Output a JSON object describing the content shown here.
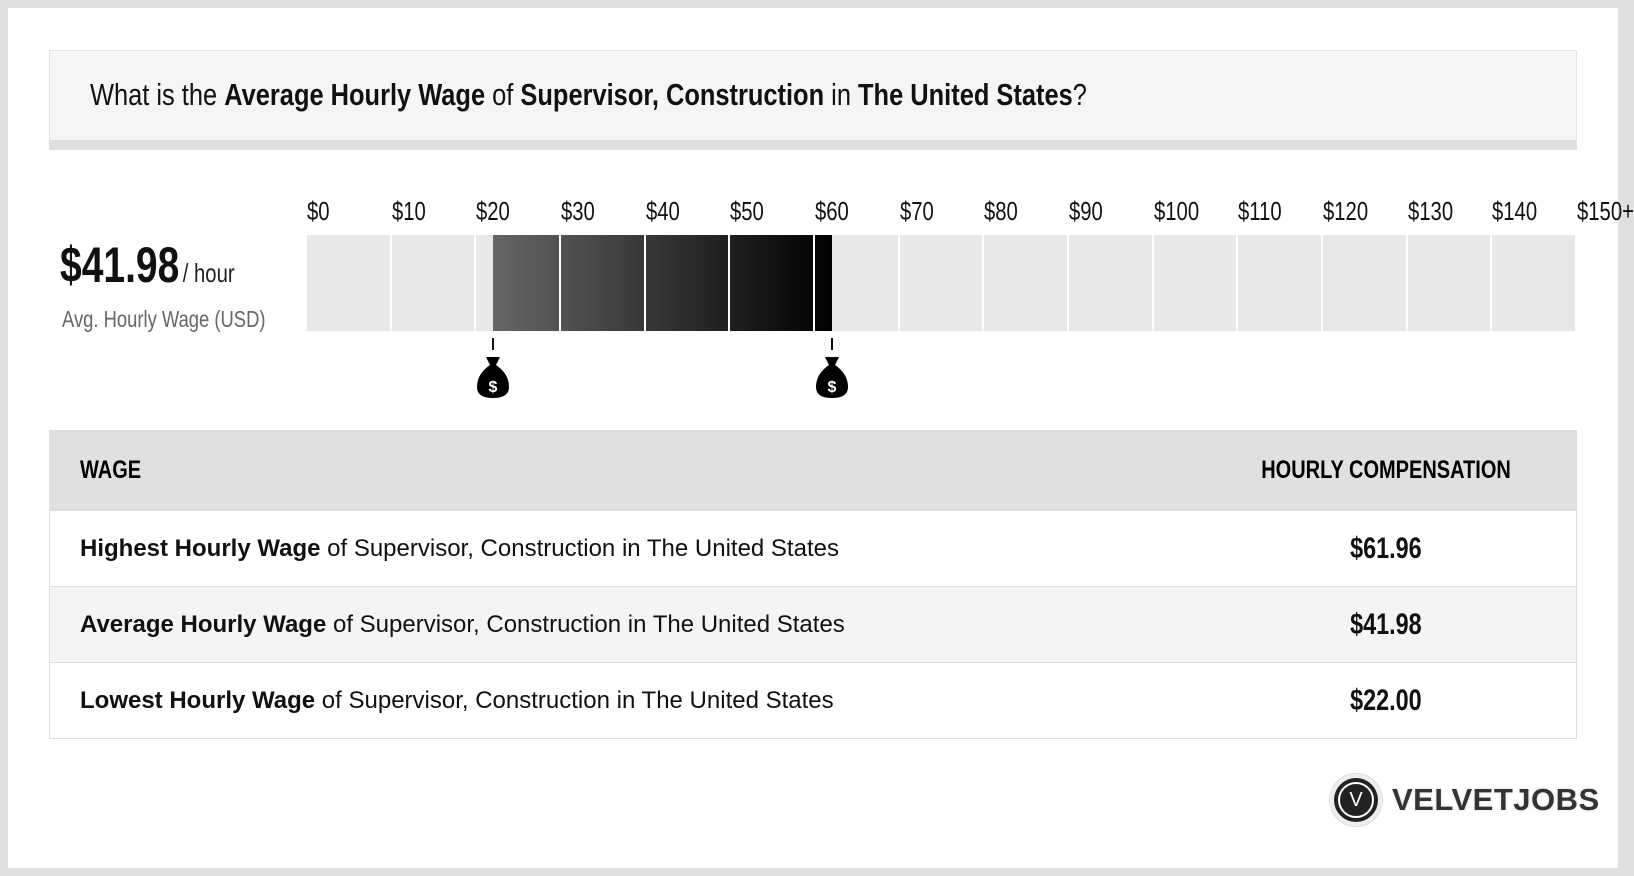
{
  "header": {
    "p1": "What is the ",
    "b1": "Average Hourly Wage",
    "p2": " of ",
    "b2": "Supervisor, Construction",
    "p3": " in ",
    "b3": "The United States",
    "p4": "?"
  },
  "summary": {
    "value": "$41.98",
    "unit": "/ hour",
    "label": "Avg. Hourly Wage (USD)"
  },
  "chart_data": {
    "type": "bar",
    "tick_labels": [
      "$0",
      "$10",
      "$20",
      "$30",
      "$40",
      "$50",
      "$60",
      "$70",
      "$80",
      "$90",
      "$100",
      "$110",
      "$120",
      "$130",
      "$140",
      "$150+"
    ],
    "xlim": [
      0,
      150
    ],
    "range": {
      "low": 22.0,
      "average": 41.98,
      "high": 61.96
    },
    "markers": [
      {
        "value": 22.0,
        "icon": "money-bag-icon"
      },
      {
        "value": 61.96,
        "icon": "money-bag-icon"
      }
    ],
    "colors": {
      "empty": "#e8e8e8",
      "fill_start": "#666666",
      "fill_end": "#000000"
    }
  },
  "table": {
    "headers": [
      "WAGE",
      "HOURLY COMPENSATION"
    ],
    "rows": [
      {
        "bold": "Highest Hourly Wage",
        "rest": " of Supervisor, Construction in The United States",
        "value": "$61.96"
      },
      {
        "bold": "Average Hourly Wage",
        "rest": " of Supervisor, Construction in The United States",
        "value": "$41.98"
      },
      {
        "bold": "Lowest Hourly Wage",
        "rest": " of Supervisor, Construction in The United States",
        "value": "$22.00"
      }
    ]
  },
  "logo": {
    "mark": "V",
    "text": "VELVETJOBS"
  }
}
